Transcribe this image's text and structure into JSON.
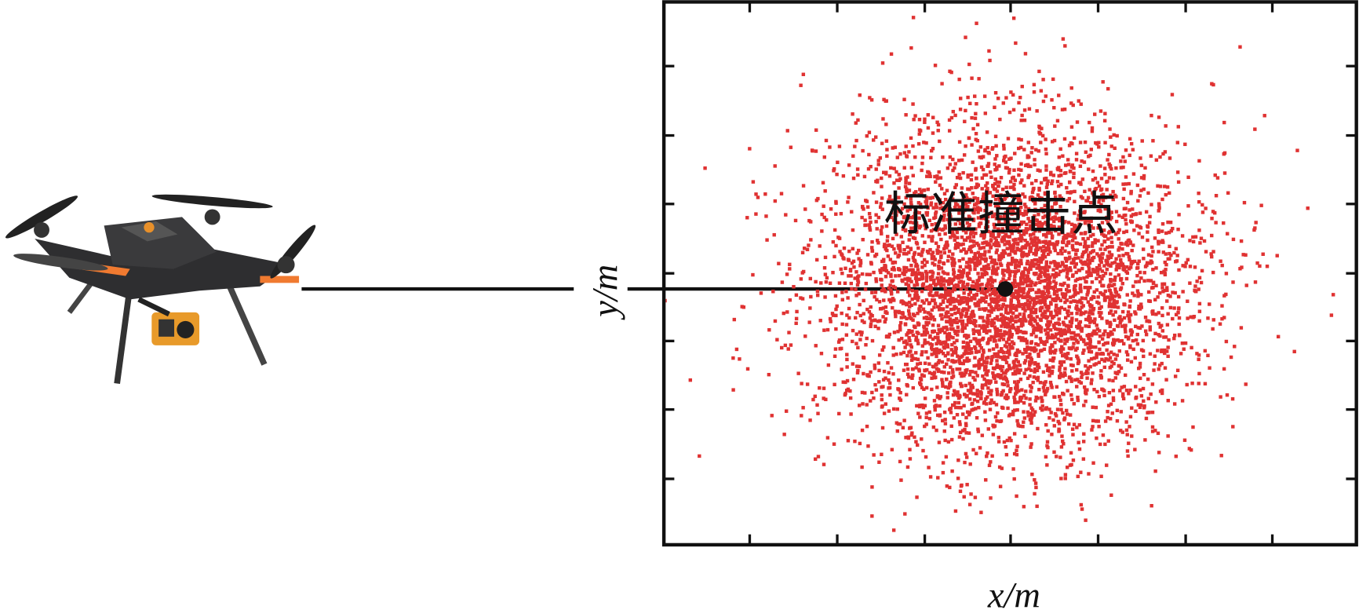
{
  "labels": {
    "impact_point": "标准撞击点",
    "x_axis": "x/m",
    "y_axis": "y/m"
  }
}
